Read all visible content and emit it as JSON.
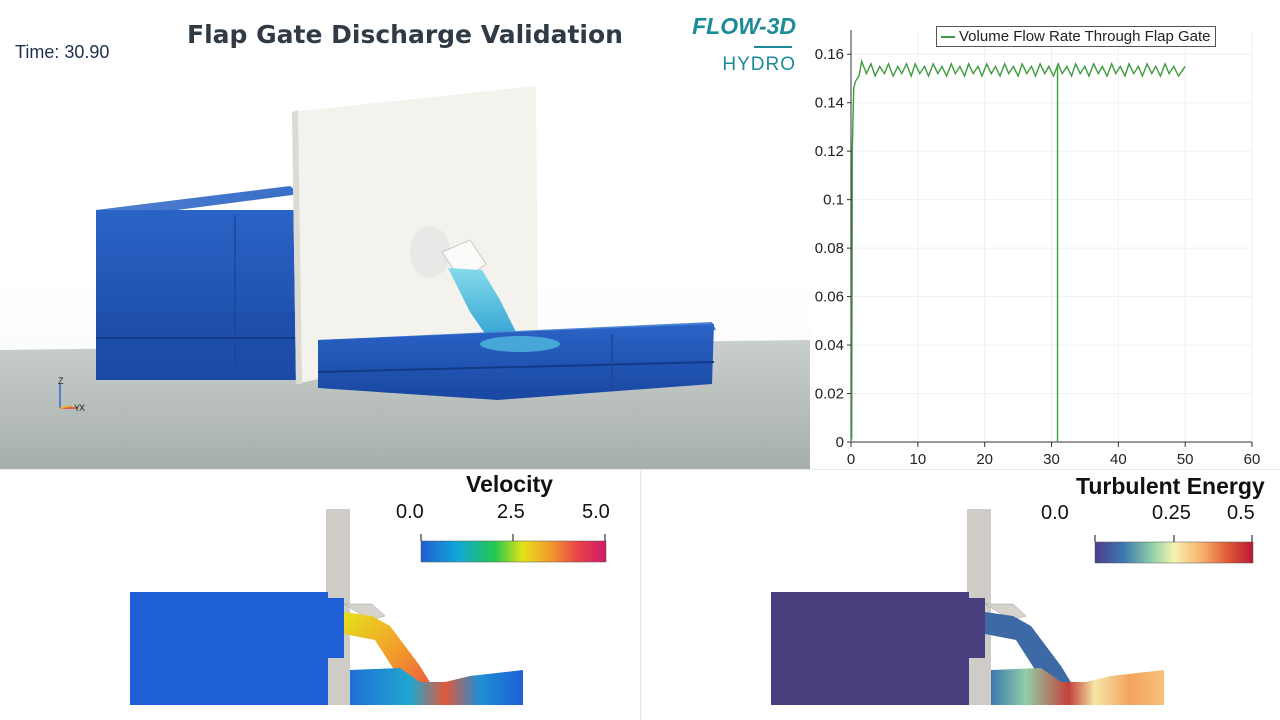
{
  "header": {
    "title": "Flap Gate Discharge Validation",
    "time_label": "Time: 30.90"
  },
  "logo": {
    "line1": "FLOW-3D",
    "line2": "HYDRO"
  },
  "axes_triad": {
    "z": "Z",
    "y": "Y",
    "x": "X"
  },
  "chart_data": {
    "type": "line",
    "title": "",
    "xlabel": "",
    "ylabel": "",
    "xlim": [
      0,
      60
    ],
    "ylim": [
      0,
      0.17
    ],
    "x_ticks": [
      0,
      10,
      20,
      30,
      40,
      50,
      60
    ],
    "y_ticks": [
      0,
      0.02,
      0.04,
      0.06,
      0.08,
      0.1,
      0.12,
      0.14,
      0.16
    ],
    "y_tick_labels": [
      "0",
      "0.02",
      "0.04",
      "0.06",
      "0.08",
      "0.1",
      "0.12",
      "0.14",
      "0.16"
    ],
    "legend": "top-right",
    "current_time": 30.9,
    "series": [
      {
        "name": "Volume Flow Rate Through Flap Gate",
        "color": "#3f9b3f",
        "x": [
          0,
          0.1,
          0.2,
          0.4,
          0.7,
          1.2,
          1.6,
          2.3,
          3.0,
          3.6,
          4.3,
          5.0,
          5.6,
          6.3,
          7.0,
          7.6,
          8.3,
          9.0,
          9.6,
          10.3,
          11.0,
          11.6,
          12.3,
          13.0,
          13.6,
          14.3,
          15.0,
          15.6,
          16.3,
          17.0,
          17.6,
          18.3,
          19.0,
          19.6,
          20.3,
          21.0,
          21.6,
          22.3,
          23.0,
          23.6,
          24.3,
          25.0,
          25.6,
          26.3,
          27.0,
          27.6,
          28.3,
          29.0,
          29.6,
          30.3,
          31.0,
          31.6,
          32.3,
          33.0,
          33.6,
          34.3,
          35.0,
          35.6,
          36.3,
          37.0,
          37.6,
          38.3,
          39.0,
          39.6,
          40.3,
          41.0,
          41.6,
          42.3,
          43.0,
          43.6,
          44.3,
          45.0,
          45.6,
          46.3,
          47.0,
          47.6,
          48.3,
          49.0,
          49.5,
          50.0
        ],
        "values": [
          0,
          0.002,
          0.12,
          0.146,
          0.149,
          0.151,
          0.157,
          0.152,
          0.156,
          0.151,
          0.155,
          0.152,
          0.156,
          0.151,
          0.155,
          0.152,
          0.156,
          0.151,
          0.156,
          0.152,
          0.155,
          0.151,
          0.156,
          0.152,
          0.155,
          0.151,
          0.156,
          0.152,
          0.155,
          0.151,
          0.156,
          0.152,
          0.155,
          0.151,
          0.156,
          0.152,
          0.155,
          0.151,
          0.156,
          0.152,
          0.155,
          0.151,
          0.156,
          0.152,
          0.155,
          0.151,
          0.156,
          0.152,
          0.155,
          0.151,
          0.156,
          0.152,
          0.155,
          0.151,
          0.156,
          0.152,
          0.155,
          0.151,
          0.156,
          0.152,
          0.155,
          0.151,
          0.156,
          0.152,
          0.155,
          0.151,
          0.156,
          0.152,
          0.155,
          0.151,
          0.156,
          0.152,
          0.155,
          0.151,
          0.156,
          0.152,
          0.155,
          0.151,
          0.153,
          0.155
        ]
      }
    ]
  },
  "velocity_panel": {
    "title": "Velocity",
    "ticks": [
      "0.0",
      "2.5",
      "5.0"
    ],
    "colors": [
      "#1f5fd6",
      "#13a8d8",
      "#22c94c",
      "#e6e21a",
      "#f39a2c",
      "#e8414a",
      "#d01a6a"
    ]
  },
  "tke_panel": {
    "title": "Turbulent Energy",
    "ticks": [
      "0.0",
      "0.25",
      "0.5"
    ],
    "colors": [
      "#4a3f8a",
      "#3d78b0",
      "#8fcfa6",
      "#f6f3b2",
      "#f6b06a",
      "#e05a3a",
      "#b81733"
    ]
  }
}
